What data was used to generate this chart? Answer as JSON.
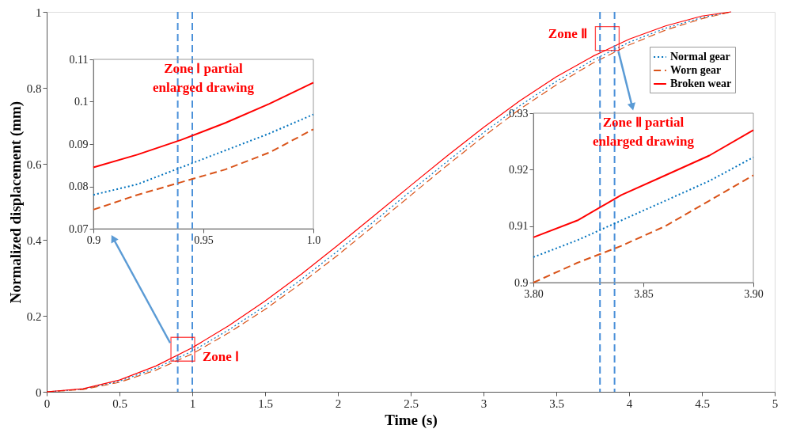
{
  "chart_data": [
    {
      "type": "line",
      "xlabel": "Time (s)",
      "ylabel": "Normalized displacement (mm)",
      "x": [
        0,
        0.25,
        0.5,
        0.75,
        1,
        1.25,
        1.5,
        1.75,
        2,
        2.25,
        2.5,
        2.75,
        3,
        3.25,
        3.5,
        3.75,
        4,
        4.25,
        4.5,
        4.7
      ],
      "series": [
        {
          "name": "Normal gear",
          "color": "#0072bd",
          "line_style": "dotted",
          "values": [
            0,
            0.007,
            0.028,
            0.062,
            0.107,
            0.163,
            0.226,
            0.296,
            0.371,
            0.449,
            0.528,
            0.606,
            0.682,
            0.753,
            0.817,
            0.873,
            0.92,
            0.957,
            0.985,
            1.0
          ]
        },
        {
          "name": "Worn gear",
          "color": "#d95319",
          "line_style": "dashed",
          "values": [
            0,
            0.006,
            0.025,
            0.057,
            0.1,
            0.155,
            0.217,
            0.286,
            0.36,
            0.438,
            0.517,
            0.596,
            0.672,
            0.744,
            0.808,
            0.865,
            0.913,
            0.952,
            0.982,
            1.0
          ]
        },
        {
          "name": "Broken wear",
          "color": "#ff0000",
          "line_style": "solid",
          "values": [
            0,
            0.008,
            0.031,
            0.068,
            0.116,
            0.174,
            0.239,
            0.31,
            0.386,
            0.464,
            0.543,
            0.621,
            0.696,
            0.766,
            0.829,
            0.883,
            0.928,
            0.963,
            0.989,
            1.0
          ]
        }
      ],
      "xlim": [
        0,
        5
      ],
      "ylim": [
        0,
        1
      ],
      "xticks": [
        0,
        0.5,
        1,
        1.5,
        2,
        2.5,
        3,
        3.5,
        4,
        4.5,
        5
      ],
      "yticks": [
        0,
        0.2,
        0.4,
        0.6,
        0.8,
        1
      ],
      "ref_lines": [
        {
          "axis": "x",
          "value": 0.9,
          "color": "#4a90d9",
          "line_style": "dashed"
        },
        {
          "axis": "x",
          "value": 1.0,
          "color": "#4a90d9",
          "line_style": "dashed"
        },
        {
          "axis": "x",
          "value": 3.8,
          "color": "#4a90d9",
          "line_style": "dashed"
        },
        {
          "axis": "x",
          "value": 3.9,
          "color": "#4a90d9",
          "line_style": "dashed"
        }
      ],
      "annotations": [
        {
          "text": "Zone Ⅰ",
          "x": 0.935,
          "y": 0.112
        },
        {
          "text": "Zone Ⅱ",
          "x": 3.85,
          "y": 0.93
        }
      ],
      "legend": "top right",
      "grid": false
    },
    {
      "type": "line",
      "title": "Zone Ⅰ partial\nenlarged drawing",
      "x": [
        0.9,
        0.92,
        0.94,
        0.96,
        0.98,
        1.0
      ],
      "series": [
        {
          "color": "#0072bd",
          "line_style": "dotted",
          "values": [
            0.078,
            0.0805,
            0.0845,
            0.0885,
            0.0925,
            0.097
          ]
        },
        {
          "color": "#d95319",
          "line_style": "dashed",
          "values": [
            0.0745,
            0.078,
            0.081,
            0.084,
            0.088,
            0.0935
          ]
        },
        {
          "color": "#ff0000",
          "line_style": "solid",
          "values": [
            0.0845,
            0.0875,
            0.091,
            0.095,
            0.0995,
            0.1045
          ]
        }
      ],
      "xlim": [
        0.9,
        1.0
      ],
      "ylim": [
        0.07,
        0.11
      ],
      "xticks": [
        0.9,
        0.95,
        {
          "value": 1.0,
          "label": "1.0"
        }
      ],
      "yticks": [
        0.07,
        0.08,
        0.09,
        0.1,
        0.11
      ],
      "grid": false
    },
    {
      "type": "line",
      "title": "Zone Ⅱ partial\nenlarged drawing",
      "x": [
        3.8,
        3.82,
        3.84,
        3.86,
        3.88,
        3.9
      ],
      "series": [
        {
          "color": "#0072bd",
          "line_style": "dotted",
          "values": [
            0.9045,
            0.9075,
            0.911,
            0.9145,
            0.918,
            0.9222
          ]
        },
        {
          "color": "#d95319",
          "line_style": "dashed",
          "values": [
            0.9,
            0.9035,
            0.9065,
            0.91,
            0.9145,
            0.919
          ]
        },
        {
          "color": "#ff0000",
          "line_style": "solid",
          "values": [
            0.908,
            0.911,
            0.9155,
            0.919,
            0.9225,
            0.927
          ]
        }
      ],
      "xlim": [
        3.8,
        3.9
      ],
      "ylim": [
        0.9,
        0.93
      ],
      "xticks": [
        {
          "value": 3.8,
          "label": "3.80"
        },
        {
          "value": 3.85,
          "label": "3.85"
        },
        {
          "value": 3.9,
          "label": "3.90"
        }
      ],
      "yticks": [
        0.9,
        0.91,
        0.92,
        0.93
      ],
      "grid": false
    }
  ]
}
